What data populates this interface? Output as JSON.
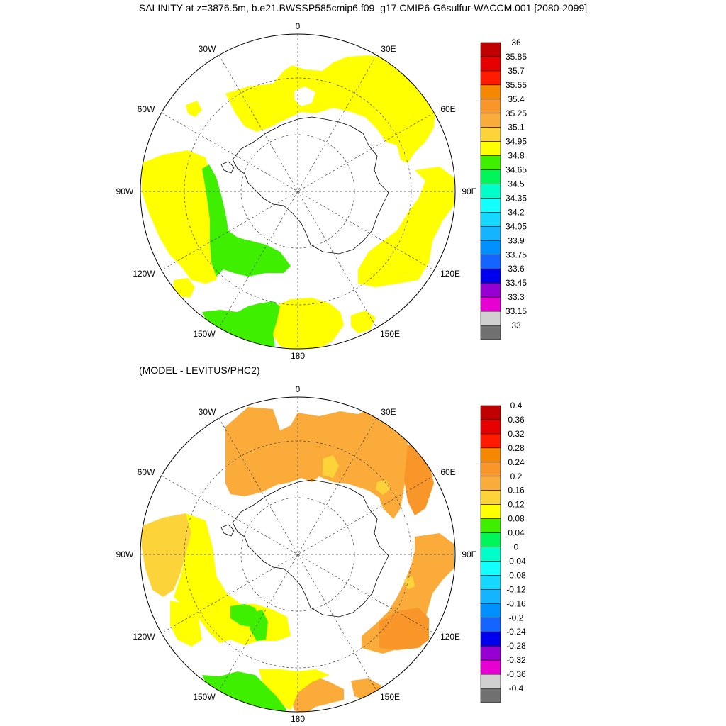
{
  "title": "SALINITY at z=3876.5m, b.e21.BWSSP585cmip6.f09_g17.CMIP6-G6sulfur-WACCM.001 [2080-2099]",
  "subtitle": "(MODEL - LEVITUS/PHC2)",
  "longitude_labels": [
    "0",
    "30E",
    "60E",
    "90E",
    "120E",
    "150E",
    "180",
    "150W",
    "120W",
    "90W",
    "60W",
    "30W"
  ],
  "colorbar_top": {
    "labels": [
      "36",
      "35.85",
      "35.7",
      "35.55",
      "35.4",
      "35.25",
      "35.1",
      "34.95",
      "34.8",
      "34.65",
      "34.5",
      "34.35",
      "34.2",
      "34.05",
      "33.9",
      "33.75",
      "33.6",
      "33.45",
      "33.3",
      "33.15",
      "33"
    ],
    "colors": [
      "#c00000",
      "#e60000",
      "#ff1a00",
      "#f58800",
      "#f9962a",
      "#fbab3a",
      "#fdd33a",
      "#ffff00",
      "#3ef000",
      "#00f55a",
      "#00ffc8",
      "#14ffff",
      "#14d8ff",
      "#14b4ff",
      "#0090ff",
      "#1464ff",
      "#0000f0",
      "#9600d2",
      "#e600d2",
      "#d0d0d0",
      "#707070"
    ]
  },
  "colorbar_bottom": {
    "labels": [
      "0.4",
      "0.36",
      "0.32",
      "0.28",
      "0.24",
      "0.2",
      "0.16",
      "0.12",
      "0.08",
      "0.04",
      "0",
      "-0.04",
      "-0.08",
      "-0.12",
      "-0.16",
      "-0.2",
      "-0.24",
      "-0.28",
      "-0.32",
      "-0.36",
      "-0.4"
    ],
    "colors": [
      "#c00000",
      "#e60000",
      "#ff1a00",
      "#f58800",
      "#f9962a",
      "#fbab3a",
      "#fdd33a",
      "#ffff00",
      "#3ef000",
      "#00f55a",
      "#00ffc8",
      "#14ffff",
      "#14d8ff",
      "#14b4ff",
      "#0090ff",
      "#1464ff",
      "#0000f0",
      "#9600d2",
      "#e600d2",
      "#d0d0d0",
      "#707070"
    ]
  }
}
